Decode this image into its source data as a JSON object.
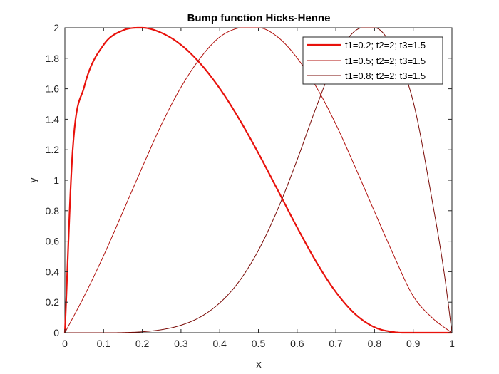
{
  "chart_data": {
    "type": "line",
    "title": "Bump function Hicks-Henne",
    "xlabel": "x",
    "ylabel": "y",
    "xlim": [
      0,
      1
    ],
    "ylim": [
      0,
      2
    ],
    "xticks": [
      0,
      0.1,
      0.2,
      0.3,
      0.4,
      0.5,
      0.6,
      0.7,
      0.8,
      0.9,
      1
    ],
    "xtick_labels": [
      "0",
      "0.1",
      "0.2",
      "0.3",
      "0.4",
      "0.5",
      "0.6",
      "0.7",
      "0.8",
      "0.9",
      "1"
    ],
    "yticks": [
      0,
      0.2,
      0.4,
      0.6,
      0.8,
      1,
      1.2,
      1.4,
      1.6,
      1.8,
      2
    ],
    "ytick_labels": [
      "0",
      "0.2",
      "0.4",
      "0.6",
      "0.8",
      "1",
      "1.2",
      "1.4",
      "1.6",
      "1.8",
      "2"
    ],
    "grid": false,
    "legend_position": "top-right",
    "x": [
      0,
      0.02,
      0.05,
      0.1,
      0.15,
      0.2,
      0.25,
      0.3,
      0.35,
      0.4,
      0.45,
      0.5,
      0.55,
      0.6,
      0.65,
      0.7,
      0.75,
      0.8,
      0.85,
      0.9,
      0.95,
      0.98,
      1
    ],
    "series": [
      {
        "name": "t1=0.2; t2=2; t3=1.5",
        "color": "#e8120c",
        "line_style": "thick",
        "values": [
          0,
          1.191,
          1.613,
          1.888,
          1.983,
          2.0,
          1.966,
          1.888,
          1.765,
          1.602,
          1.403,
          1.177,
          0.935,
          0.691,
          0.462,
          0.267,
          0.122,
          0.036,
          0.004,
          0.0,
          0.0,
          0.0,
          0
        ]
      },
      {
        "name": "t1=0.5; t2=2; t3=1.5",
        "color": "#b0100c",
        "line_style": "thin",
        "values": [
          0,
          0.095,
          0.24,
          0.505,
          0.794,
          1.086,
          1.368,
          1.61,
          1.802,
          1.939,
          1.999,
          2.0,
          1.939,
          1.802,
          1.61,
          1.368,
          1.086,
          0.794,
          0.505,
          0.24,
          0.095,
          0.035,
          0
        ]
      },
      {
        "name": "t1=0.8; t2=2; t3=1.5",
        "color": "#7a0a06",
        "line_style": "thin",
        "values": [
          0,
          0.0,
          0.0,
          0.0,
          0.001,
          0.006,
          0.02,
          0.049,
          0.103,
          0.195,
          0.336,
          0.54,
          0.81,
          1.133,
          1.483,
          1.797,
          1.98,
          2.0,
          1.854,
          1.515,
          0.851,
          0.391,
          0
        ]
      }
    ]
  }
}
